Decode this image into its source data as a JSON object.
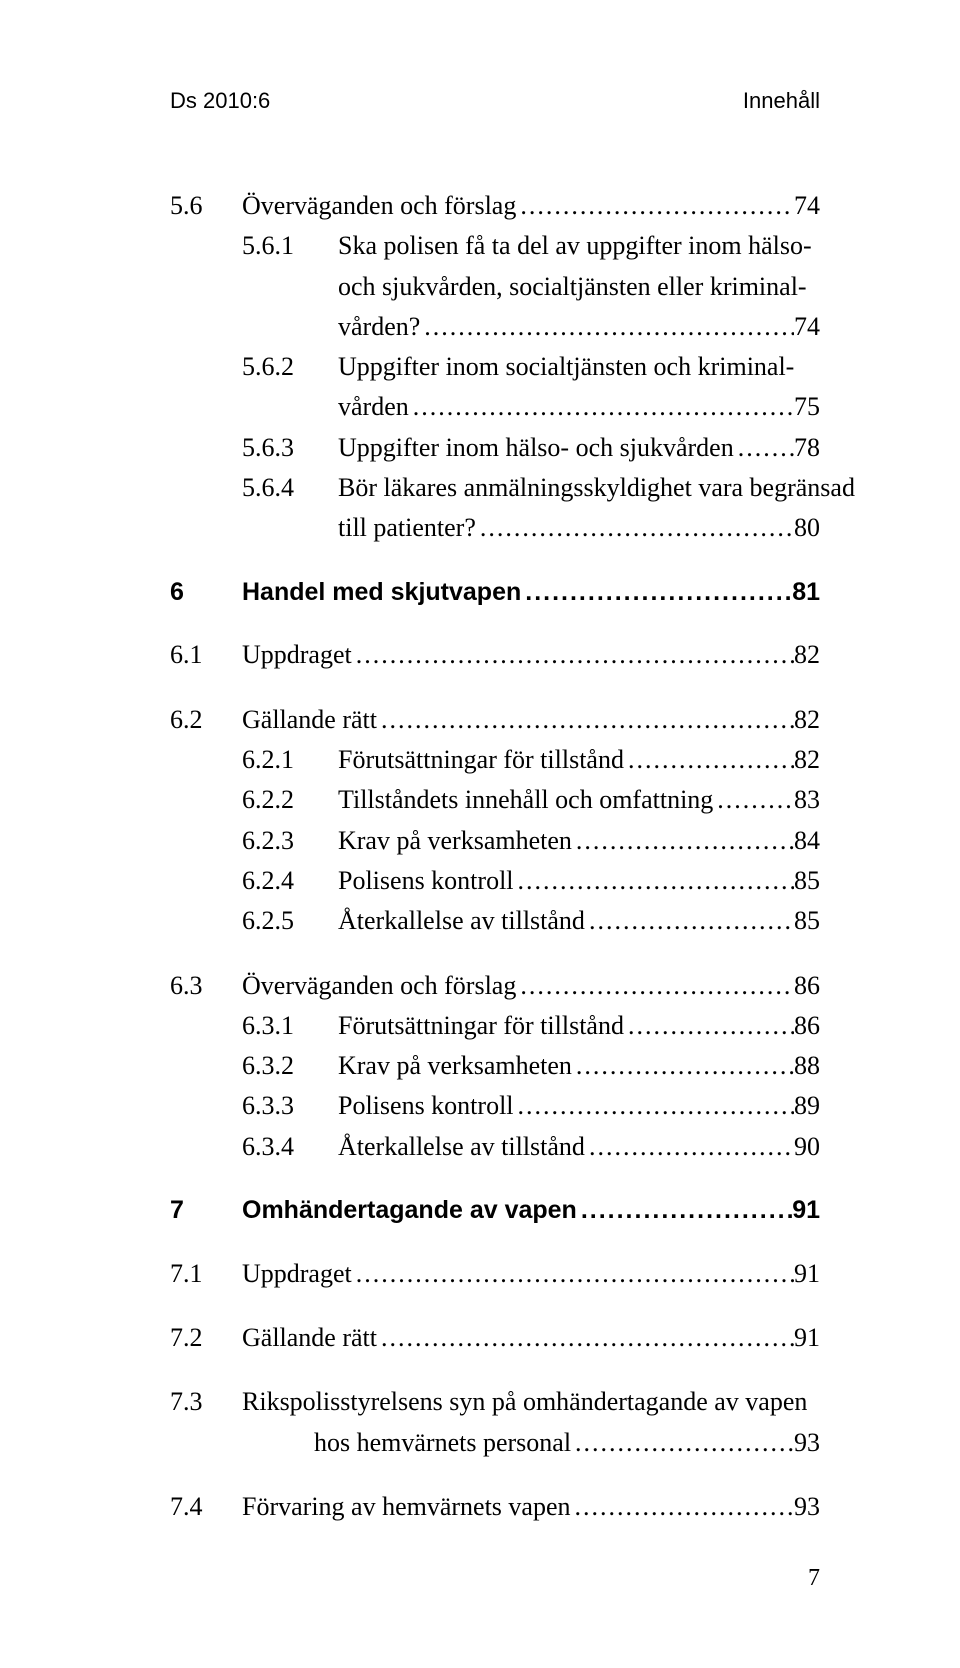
{
  "header": {
    "left": "Ds 2010:6",
    "right": "Innehåll"
  },
  "entries": [
    {
      "indent": 2,
      "num": "5.6",
      "label": "Överväganden och förslag",
      "page": "74"
    },
    {
      "indent": 3,
      "num": "5.6.1",
      "label": "Ska polisen få ta del av uppgifter inom hälso-",
      "page": null,
      "noLeader": true
    },
    {
      "indent": "cont3",
      "num": "",
      "label": "och sjukvården, socialtjänsten eller kriminal-",
      "page": null,
      "noLeader": true
    },
    {
      "indent": "cont3",
      "num": "",
      "label": "vården?",
      "page": "74"
    },
    {
      "indent": 3,
      "num": "5.6.2",
      "label": "Uppgifter inom socialtjänsten och kriminal-",
      "page": null,
      "noLeader": true
    },
    {
      "indent": "cont3",
      "num": "",
      "label": "vården",
      "page": "75"
    },
    {
      "indent": 3,
      "num": "5.6.3",
      "label": "Uppgifter inom hälso- och sjukvården",
      "page": "78"
    },
    {
      "indent": 3,
      "num": "5.6.4",
      "label": "Bör läkares anmälningsskyldighet vara begränsad",
      "page": null,
      "noLeader": true
    },
    {
      "indent": "cont3",
      "num": "",
      "label": "till patienter?",
      "page": "80"
    },
    {
      "gap": true
    },
    {
      "indent": 1,
      "num": "6",
      "label": "Handel med skjutvapen",
      "page": "81",
      "bold": true
    },
    {
      "gap": true
    },
    {
      "indent": 2,
      "num": "6.1",
      "label": "Uppdraget",
      "page": "82"
    },
    {
      "gap": true
    },
    {
      "indent": 2,
      "num": "6.2",
      "label": "Gällande rätt",
      "page": "82"
    },
    {
      "indent": 3,
      "num": "6.2.1",
      "label": "Förutsättningar för tillstånd",
      "page": "82"
    },
    {
      "indent": 3,
      "num": "6.2.2",
      "label": "Tillståndets innehåll och omfattning",
      "page": "83"
    },
    {
      "indent": 3,
      "num": "6.2.3",
      "label": "Krav på verksamheten",
      "page": "84"
    },
    {
      "indent": 3,
      "num": "6.2.4",
      "label": "Polisens kontroll",
      "page": "85"
    },
    {
      "indent": 3,
      "num": "6.2.5",
      "label": "Återkallelse av tillstånd",
      "page": "85"
    },
    {
      "gap": true
    },
    {
      "indent": 2,
      "num": "6.3",
      "label": "Överväganden och förslag",
      "page": "86"
    },
    {
      "indent": 3,
      "num": "6.3.1",
      "label": "Förutsättningar för tillstånd",
      "page": "86"
    },
    {
      "indent": 3,
      "num": "6.3.2",
      "label": "Krav på verksamheten",
      "page": "88"
    },
    {
      "indent": 3,
      "num": "6.3.3",
      "label": "Polisens kontroll",
      "page": "89"
    },
    {
      "indent": 3,
      "num": "6.3.4",
      "label": "Återkallelse av tillstånd",
      "page": "90"
    },
    {
      "gap": true
    },
    {
      "indent": 1,
      "num": "7",
      "label": "Omhändertagande av vapen",
      "page": "91",
      "bold": true
    },
    {
      "gap": true
    },
    {
      "indent": 2,
      "num": "7.1",
      "label": "Uppdraget",
      "page": "91"
    },
    {
      "gap": true
    },
    {
      "indent": 2,
      "num": "7.2",
      "label": "Gällande rätt",
      "page": "91"
    },
    {
      "gap": true
    },
    {
      "indent": 2,
      "num": "7.3",
      "label": "Rikspolisstyrelsens syn på omhändertagande av vapen",
      "page": null,
      "noLeader": true
    },
    {
      "indent": "cont2",
      "num": "",
      "label": "hos hemvärnets personal",
      "page": "93"
    },
    {
      "gap": true
    },
    {
      "indent": 2,
      "num": "7.4",
      "label": "Förvaring av hemvärnets vapen",
      "page": "93"
    }
  ],
  "pageNumber": "7",
  "colors": {
    "text": "#000000",
    "background": "#ffffff"
  }
}
